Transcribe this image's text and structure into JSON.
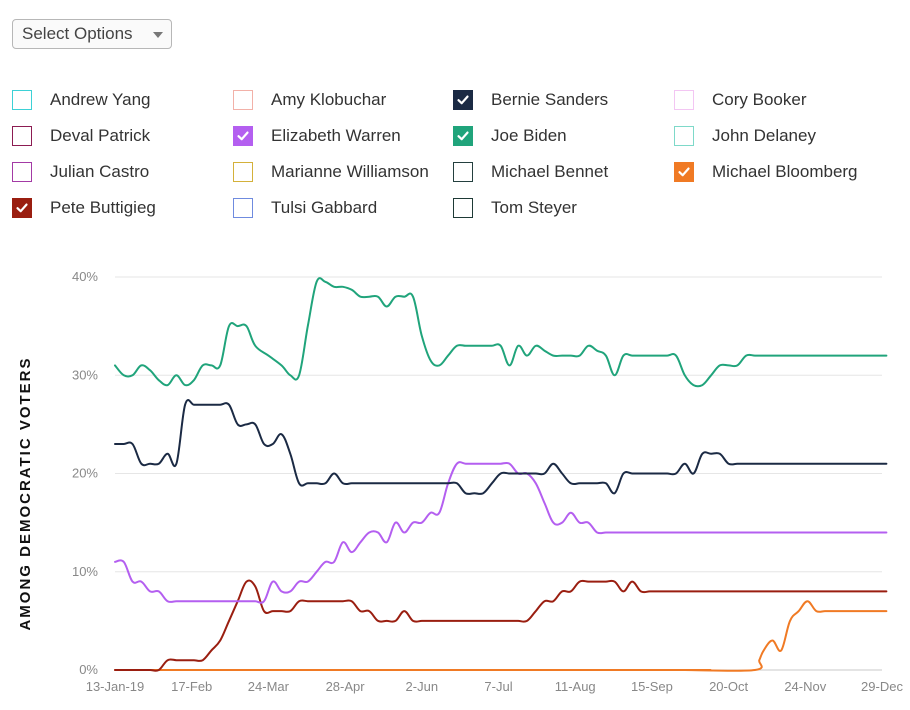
{
  "select": {
    "label": "Select Options"
  },
  "legend": [
    {
      "name": "Andrew Yang",
      "color": "#3dd1d6",
      "checked": false
    },
    {
      "name": "Amy Klobuchar",
      "color": "#f2b1a8",
      "checked": false
    },
    {
      "name": "Bernie Sanders",
      "color": "#1b2a44",
      "checked": true
    },
    {
      "name": "Cory Booker",
      "color": "#f3c6f3",
      "checked": false
    },
    {
      "name": "Deval Patrick",
      "color": "#8c1c52",
      "checked": false
    },
    {
      "name": "Elizabeth Warren",
      "color": "#b45ff0",
      "checked": true
    },
    {
      "name": "Joe Biden",
      "color": "#20a47b",
      "checked": true
    },
    {
      "name": "John Delaney",
      "color": "#7ed9c9",
      "checked": false
    },
    {
      "name": "Julian Castro",
      "color": "#a33aa5",
      "checked": false
    },
    {
      "name": "Marianne Williamson",
      "color": "#d4b13a",
      "checked": false
    },
    {
      "name": "Michael Bennet",
      "color": "#24403f",
      "checked": false
    },
    {
      "name": "Michael Bloomberg",
      "color": "#f07a24",
      "checked": true
    },
    {
      "name": "Pete Buttigieg",
      "color": "#9a1e10",
      "checked": true
    },
    {
      "name": "Tulsi Gabbard",
      "color": "#6f8bdf",
      "checked": false
    },
    {
      "name": "Tom Steyer",
      "color": "#1e3a36",
      "checked": false
    }
  ],
  "chart_data": {
    "type": "line",
    "ylabel": "AMONG DEMOCRATIC VOTERS",
    "xlabel": "",
    "ylim": [
      0,
      40
    ],
    "xlim": [
      0,
      350
    ],
    "yticks": [
      {
        "value": 0,
        "label": "0%"
      },
      {
        "value": 10,
        "label": "10%"
      },
      {
        "value": 20,
        "label": "20%"
      },
      {
        "value": 30,
        "label": "30%"
      },
      {
        "value": 40,
        "label": "40%"
      }
    ],
    "xticks": [
      {
        "value": 0,
        "label": "13-Jan-19"
      },
      {
        "value": 35,
        "label": "17-Feb"
      },
      {
        "value": 70,
        "label": "24-Mar"
      },
      {
        "value": 105,
        "label": "28-Apr"
      },
      {
        "value": 140,
        "label": "2-Jun"
      },
      {
        "value": 175,
        "label": "7-Jul"
      },
      {
        "value": 210,
        "label": "11-Aug"
      },
      {
        "value": 245,
        "label": "15-Sep"
      },
      {
        "value": 280,
        "label": "20-Oct"
      },
      {
        "value": 315,
        "label": "24-Nov"
      },
      {
        "value": 350,
        "label": "29-Dec"
      }
    ],
    "series": [
      {
        "name": "Joe Biden",
        "color": "#20a47b",
        "x": [
          0,
          4,
          8,
          12,
          16,
          20,
          24,
          28,
          32,
          36,
          40,
          44,
          48,
          52,
          56,
          60,
          64,
          70,
          76,
          80,
          84,
          88,
          92,
          96,
          100,
          104,
          108,
          112,
          116,
          120,
          124,
          128,
          132,
          136,
          140,
          144,
          148,
          152,
          156,
          160,
          164,
          168,
          172,
          176,
          180,
          184,
          188,
          192,
          196,
          200,
          204,
          208,
          212,
          216,
          220,
          224,
          228,
          232,
          236,
          240,
          244,
          248,
          252,
          256,
          260,
          264,
          268,
          272,
          276,
          280,
          284,
          288,
          292,
          296,
          300,
          304,
          308,
          312,
          316,
          320,
          324,
          328,
          332,
          336,
          340,
          344,
          348,
          352
        ],
        "y": [
          31,
          30,
          30,
          31,
          30.5,
          29.5,
          29,
          30,
          29,
          29.5,
          31,
          31,
          31,
          35,
          35,
          35,
          33,
          32,
          31,
          30,
          30,
          35,
          39.5,
          39.5,
          39,
          39,
          38.7,
          38,
          38,
          38,
          37,
          38,
          38,
          38,
          34,
          31.5,
          31,
          32,
          33,
          33,
          33,
          33,
          33,
          33,
          31,
          33,
          32,
          33,
          32.5,
          32,
          32,
          32,
          32,
          33,
          32.5,
          32,
          30,
          32,
          32,
          32,
          32,
          32,
          32,
          32,
          30,
          29,
          29,
          30,
          31,
          31,
          31,
          32,
          32,
          32,
          32,
          32,
          32,
          32,
          32,
          32,
          32,
          32,
          32,
          32,
          32,
          32,
          32,
          32
        ]
      },
      {
        "name": "Bernie Sanders",
        "color": "#1b2a44",
        "x": [
          0,
          4,
          8,
          12,
          16,
          20,
          24,
          28,
          32,
          36,
          40,
          44,
          48,
          52,
          56,
          60,
          64,
          68,
          72,
          76,
          80,
          84,
          88,
          92,
          96,
          100,
          104,
          108,
          112,
          116,
          120,
          124,
          128,
          132,
          136,
          140,
          144,
          148,
          152,
          156,
          160,
          164,
          168,
          172,
          176,
          180,
          184,
          188,
          192,
          196,
          200,
          204,
          208,
          212,
          216,
          220,
          224,
          228,
          232,
          236,
          240,
          244,
          248,
          252,
          256,
          260,
          264,
          268,
          272,
          276,
          280,
          284,
          288,
          292,
          296,
          300,
          304,
          308,
          312,
          316,
          320,
          324,
          328,
          332,
          336,
          340,
          344,
          348,
          352
        ],
        "y": [
          23,
          23,
          23,
          21,
          21,
          21,
          22,
          21,
          27,
          27,
          27,
          27,
          27,
          27,
          25,
          25,
          25,
          23,
          23,
          24,
          22,
          19,
          19,
          19,
          19,
          20,
          19,
          19,
          19,
          19,
          19,
          19,
          19,
          19,
          19,
          19,
          19,
          19,
          19,
          19,
          18,
          18,
          18,
          19,
          20,
          20,
          20,
          20,
          20,
          20,
          21,
          20,
          19,
          19,
          19,
          19,
          19,
          18,
          20,
          20,
          20,
          20,
          20,
          20,
          20,
          21,
          20,
          22,
          22,
          22,
          21,
          21,
          21,
          21,
          21,
          21,
          21,
          21,
          21,
          21,
          21,
          21,
          21,
          21,
          21,
          21,
          21,
          21,
          21
        ]
      },
      {
        "name": "Elizabeth Warren",
        "color": "#b45ff0",
        "x": [
          0,
          4,
          8,
          12,
          16,
          20,
          24,
          28,
          32,
          36,
          40,
          44,
          48,
          52,
          56,
          60,
          64,
          68,
          72,
          76,
          80,
          84,
          88,
          92,
          96,
          100,
          104,
          108,
          112,
          116,
          120,
          124,
          128,
          132,
          136,
          140,
          144,
          148,
          152,
          156,
          160,
          164,
          168,
          172,
          176,
          180,
          184,
          188,
          192,
          196,
          200,
          204,
          208,
          212,
          216,
          220,
          224,
          228,
          232,
          236,
          240,
          244,
          248,
          252,
          256,
          260,
          264,
          268,
          272,
          276,
          280,
          284,
          288,
          292,
          296,
          300,
          304,
          308,
          312,
          316,
          320,
          324,
          328,
          332,
          336,
          340,
          344,
          348,
          352
        ],
        "y": [
          11,
          11,
          9,
          9,
          8,
          8,
          7,
          7,
          7,
          7,
          7,
          7,
          7,
          7,
          7,
          7,
          7,
          7,
          9,
          8,
          8,
          9,
          9,
          10,
          11,
          11,
          13,
          12,
          13,
          14,
          14,
          13,
          15,
          14,
          15,
          15,
          16,
          16,
          19,
          21,
          21,
          21,
          21,
          21,
          21,
          21,
          20,
          20,
          19,
          17,
          15,
          15,
          16,
          15,
          15,
          14,
          14,
          14,
          14,
          14,
          14,
          14,
          14,
          14,
          14,
          14,
          14,
          14,
          14,
          14,
          14,
          14,
          14,
          14,
          14,
          14,
          14,
          14,
          14,
          14,
          14,
          14,
          14,
          14,
          14,
          14,
          14,
          14,
          14
        ]
      },
      {
        "name": "Pete Buttigieg",
        "color": "#9a1e10",
        "x": [
          0,
          4,
          8,
          12,
          16,
          20,
          24,
          28,
          32,
          36,
          40,
          44,
          48,
          52,
          56,
          60,
          64,
          68,
          72,
          76,
          80,
          84,
          88,
          92,
          96,
          100,
          104,
          108,
          112,
          116,
          120,
          124,
          128,
          132,
          136,
          140,
          144,
          148,
          152,
          156,
          160,
          164,
          168,
          172,
          176,
          180,
          184,
          188,
          192,
          196,
          200,
          204,
          208,
          212,
          216,
          220,
          224,
          228,
          232,
          236,
          240,
          244,
          248,
          252,
          256,
          260,
          264,
          268,
          272,
          276,
          280,
          284,
          288,
          292,
          296,
          300,
          304,
          308,
          312,
          316,
          320,
          324,
          328,
          332,
          336,
          340,
          344,
          348,
          352
        ],
        "y": [
          0,
          0,
          0,
          0,
          0,
          0,
          1,
          1,
          1,
          1,
          1,
          2,
          3,
          5,
          7,
          9,
          8.5,
          6,
          6,
          6,
          6,
          7,
          7,
          7,
          7,
          7,
          7,
          7,
          6,
          6,
          5,
          5,
          5,
          6,
          5,
          5,
          5,
          5,
          5,
          5,
          5,
          5,
          5,
          5,
          5,
          5,
          5,
          5,
          6,
          7,
          7,
          8,
          8,
          9,
          9,
          9,
          9,
          9,
          8,
          9,
          8,
          8,
          8,
          8,
          8,
          8,
          8,
          8,
          8,
          8,
          8,
          8,
          8,
          8,
          8,
          8,
          8,
          8,
          8,
          8,
          8,
          8,
          8,
          8,
          8,
          8,
          8,
          8,
          8
        ]
      },
      {
        "name": "Michael Bloomberg",
        "color": "#f07a24",
        "x": [
          0,
          250,
          260,
          292,
          294,
          296,
          300,
          304,
          308,
          312,
          316,
          320,
          324,
          328,
          332,
          336,
          340,
          344,
          348,
          352
        ],
        "y": [
          0,
          0,
          0,
          0,
          1,
          2,
          3,
          2,
          5,
          6,
          7,
          6,
          6,
          6,
          6,
          6,
          6,
          6,
          6,
          6
        ]
      }
    ]
  }
}
